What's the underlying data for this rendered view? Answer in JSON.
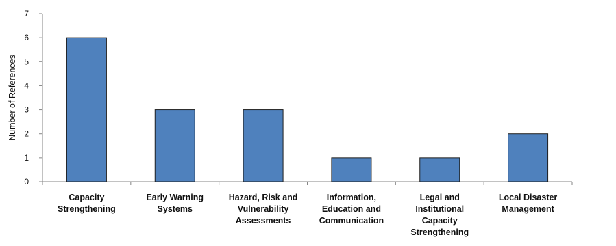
{
  "chart_data": {
    "type": "bar",
    "title": "",
    "xlabel": "",
    "ylabel": "Number of References",
    "categories": [
      "Capacity Strengthening",
      "Early Warning Systems",
      "Hazard, Risk and Vulnerability Assessments",
      "Information, Education and Communication",
      "Legal and Institutional Capacity Strengthening",
      "Local Disaster Management"
    ],
    "category_lines": [
      [
        "Capacity",
        "Strengthening"
      ],
      [
        "Early Warning",
        "Systems"
      ],
      [
        "Hazard, Risk and",
        "Vulnerability",
        "Assessments"
      ],
      [
        "Information,",
        "Education and",
        "Communication"
      ],
      [
        "Legal and",
        "Institutional",
        "Capacity",
        "Strengthening"
      ],
      [
        "Local Disaster",
        "Management"
      ]
    ],
    "values": [
      6,
      3,
      3,
      1,
      1,
      2
    ],
    "ylim": [
      0,
      7
    ],
    "yticks": [
      "0",
      "1",
      "2",
      "3",
      "4",
      "5",
      "6",
      "7"
    ],
    "grid": false,
    "legend": "none",
    "colors": {
      "bar_fill": "#4f81bd",
      "bar_stroke": "#1f1f1f",
      "axis": "#868686"
    }
  }
}
